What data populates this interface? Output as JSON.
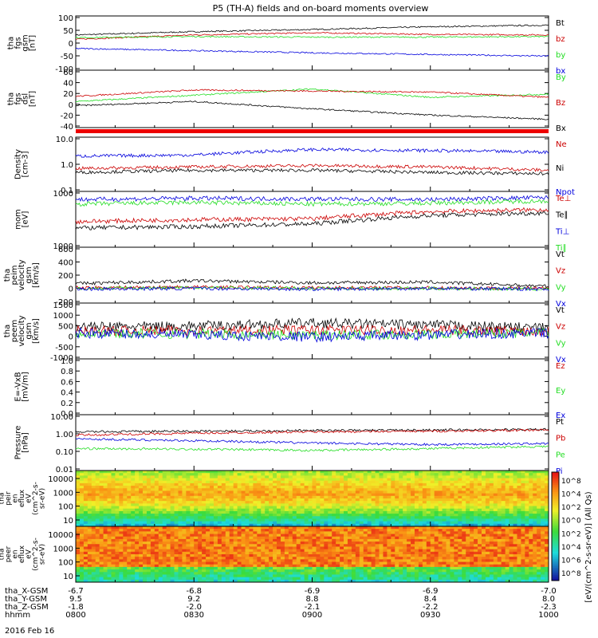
{
  "title": "P5 (TH-A) fields and on-board moments overview",
  "date_label": "2016 Feb 16",
  "colorbar_label": "[eV/(cm^2-s-sr-eV)] (All Qs)",
  "colorbar_ticks": [
    "10^8",
    "10^4",
    "10^2",
    "10^0",
    "10^2",
    "10^4",
    "10^6",
    "10^8"
  ],
  "ephemeris": {
    "rows": [
      {
        "label": "tha_X-GSM",
        "values": [
          "-6.7",
          "-6.8",
          "-6.9",
          "-6.9",
          "-7.0"
        ]
      },
      {
        "label": "tha_Y-GSM",
        "values": [
          "9.5",
          "9.2",
          "8.8",
          "8.4",
          "8.0"
        ]
      },
      {
        "label": "tha_Z-GSM",
        "values": [
          "-1.8",
          "-2.0",
          "-2.1",
          "-2.2",
          "-2.3"
        ]
      },
      {
        "label": "hhmm",
        "values": [
          "0800",
          "0830",
          "0900",
          "0930",
          "1000"
        ]
      }
    ]
  },
  "colors": {
    "black": "#000000",
    "red": "#cc0000",
    "green": "#22dd22",
    "blue": "#0000dd"
  },
  "chart_data": {
    "type": "line",
    "x": [
      "0800",
      "0830",
      "0900",
      "0930",
      "1000"
    ],
    "panels": [
      {
        "id": "fgs_gsm",
        "ylabel": [
          "tha",
          "fgs",
          "gsm",
          "[nT]"
        ],
        "yticks": [
          "100",
          "50",
          "0",
          "-50",
          "-100"
        ],
        "ylim": [
          -100,
          100
        ],
        "scale": "linear",
        "series": [
          {
            "name": "Bt",
            "color": "black",
            "values": [
              30,
              42,
              50,
              60,
              66
            ]
          },
          {
            "name": "bz",
            "color": "red",
            "values": [
              14,
              30,
              38,
              32,
              30
            ]
          },
          {
            "name": "by",
            "color": "green",
            "values": [
              20,
              24,
              22,
              22,
              24
            ]
          },
          {
            "name": "bx",
            "color": "blue",
            "values": [
              -20,
              -28,
              -36,
              -42,
              -48
            ]
          }
        ]
      },
      {
        "id": "fgs_dsl",
        "ylabel": [
          "tha",
          "fgs",
          "dsl",
          "[nT]"
        ],
        "yticks": [
          "60",
          "40",
          "20",
          "0",
          "-20",
          "-40"
        ],
        "ylim": [
          -50,
          60
        ],
        "scale": "linear",
        "series": [
          {
            "name": "By",
            "color": "green",
            "values": [
              0,
              12,
              24,
              8,
              14
            ]
          },
          {
            "name": "Bz",
            "color": "red",
            "values": [
              10,
              22,
              20,
              18,
              8
            ]
          },
          {
            "name": "Bx",
            "color": "black",
            "values": [
              -8,
              0,
              -14,
              -26,
              -34
            ]
          }
        ]
      },
      {
        "id": "density",
        "ylabel": [
          "Density",
          "[cm-3]"
        ],
        "yticks": [
          "10.0",
          "1.0",
          "0.1"
        ],
        "ylim": [
          0.1,
          10
        ],
        "scale": "log",
        "series": [
          {
            "name": "Ne",
            "color": "red",
            "values": [
              0.7,
              0.8,
              0.9,
              0.8,
              0.6
            ]
          },
          {
            "name": "Ni",
            "color": "black",
            "values": [
              0.5,
              0.6,
              0.6,
              0.5,
              0.45
            ]
          },
          {
            "name": "Npot",
            "color": "blue",
            "values": [
              2.0,
              2.2,
              3.5,
              3.2,
              2.8
            ]
          }
        ]
      },
      {
        "id": "temperature",
        "ylabel": [
          "mom",
          "[eV]"
        ],
        "yticks": [
          "1000",
          "1000"
        ],
        "ylim": [
          300,
          10000
        ],
        "scale": "log",
        "series": [
          {
            "name": "Te⊥",
            "color": "red",
            "values": [
              1500,
              1700,
              1800,
              2800,
              3200
            ]
          },
          {
            "name": "Te∥",
            "color": "black",
            "values": [
              1000,
              1100,
              1300,
              2200,
              2600
            ]
          },
          {
            "name": "Ti⊥",
            "color": "blue",
            "values": [
              6000,
              6500,
              6200,
              6000,
              6800
            ]
          },
          {
            "name": "Ti∥",
            "color": "green",
            "values": [
              4500,
              5000,
              4500,
              4800,
              5500
            ]
          }
        ]
      },
      {
        "id": "peim_velocity",
        "ylabel": [
          "tha",
          "peim",
          "velocity",
          "gsm",
          "[km/s]"
        ],
        "yticks": [
          "600",
          "400",
          "200",
          "0",
          "-200"
        ],
        "ylim": [
          -200,
          600
        ],
        "scale": "linear",
        "series": [
          {
            "name": "Vt",
            "color": "black",
            "values": [
              80,
              120,
              90,
              100,
              40
            ]
          },
          {
            "name": "Vz",
            "color": "red",
            "values": [
              20,
              30,
              20,
              20,
              10
            ]
          },
          {
            "name": "Vy",
            "color": "green",
            "values": [
              10,
              20,
              10,
              10,
              0
            ]
          },
          {
            "name": "Vx",
            "color": "blue",
            "values": [
              0,
              10,
              0,
              10,
              0
            ]
          }
        ]
      },
      {
        "id": "peem_velocity",
        "ylabel": [
          "tha",
          "peem",
          "velocity",
          "gsm",
          "[km/s]"
        ],
        "yticks": [
          "1500",
          "1000",
          "500",
          "0",
          "-500",
          "-1000"
        ],
        "ylim": [
          -1300,
          1500
        ],
        "scale": "linear",
        "series": [
          {
            "name": "Vt",
            "color": "black",
            "values": [
              300,
              350,
              500,
              400,
              250
            ]
          },
          {
            "name": "Vz",
            "color": "red",
            "values": [
              100,
              120,
              150,
              140,
              100
            ]
          },
          {
            "name": "Vy",
            "color": "green",
            "values": [
              0,
              -50,
              -100,
              -60,
              0
            ]
          },
          {
            "name": "Vx",
            "color": "blue",
            "values": [
              0,
              -100,
              -200,
              -100,
              0
            ]
          }
        ]
      },
      {
        "id": "efield",
        "ylabel": [
          "E=-VxB",
          "[mV/m]"
        ],
        "yticks": [
          "1.0",
          "0.8",
          "0.6",
          "0.4",
          "0.2",
          "0.0"
        ],
        "ylim": [
          0,
          1
        ],
        "scale": "linear",
        "series": [
          {
            "name": "Ez",
            "color": "red",
            "values": []
          },
          {
            "name": "Ey",
            "color": "green",
            "values": []
          },
          {
            "name": "Ex",
            "color": "blue",
            "values": []
          }
        ]
      },
      {
        "id": "pressure",
        "ylabel": [
          "Pressure",
          "[nPa]"
        ],
        "yticks": [
          "10.00",
          "1.00",
          "0.10",
          "0.01"
        ],
        "ylim": [
          0.01,
          10
        ],
        "scale": "log",
        "series": [
          {
            "name": "Pt",
            "color": "black",
            "values": [
              1.2,
              1.3,
              1.4,
              1.5,
              1.6
            ]
          },
          {
            "name": "Pb",
            "color": "red",
            "values": [
              0.8,
              1.0,
              1.2,
              1.3,
              1.5
            ]
          },
          {
            "name": "Pe",
            "color": "green",
            "values": [
              0.15,
              0.14,
              0.12,
              0.15,
              0.2
            ]
          },
          {
            "name": "Pi",
            "color": "blue",
            "values": [
              0.5,
              0.4,
              0.3,
              0.25,
              0.28
            ]
          }
        ]
      }
    ],
    "spectrograms": [
      {
        "id": "peir",
        "ylabel": [
          "tha",
          "peir",
          "en",
          "eflux",
          "eV",
          "(cm^2-s-",
          "sr-eV)"
        ],
        "yticks": [
          "10000",
          "1000",
          "100",
          "10"
        ],
        "ylim": [
          5,
          25000
        ],
        "scale": "log"
      },
      {
        "id": "peer",
        "ylabel": [
          "tha",
          "peer",
          "en",
          "eflux",
          "eV",
          "(cm^2-s-",
          "sr-eV)"
        ],
        "yticks": [
          "10000",
          "1000",
          "100",
          "10"
        ],
        "ylim": [
          5,
          25000
        ],
        "scale": "log"
      }
    ]
  }
}
